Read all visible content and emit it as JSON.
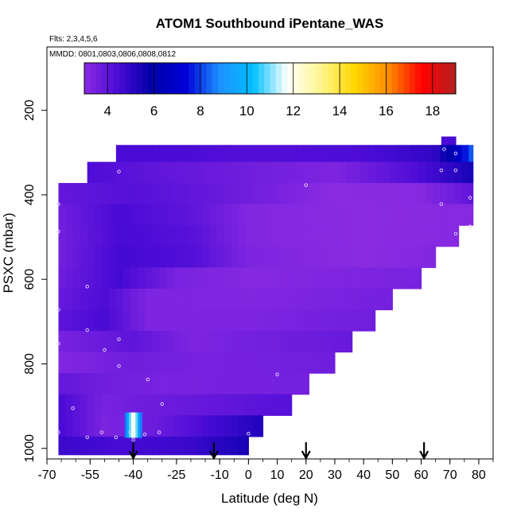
{
  "chart_data": {
    "type": "heatmap",
    "title": "ATOM1 Southbound iPentane_WAS",
    "flights_note": "Flts: 2,3,4,5,6",
    "dates_note": "MMDD: 0801,0803,0806,0808,0812",
    "xlabel": "Latitude (deg N)",
    "ylabel": "PSXC (mbar)",
    "xlim": [
      -70,
      85
    ],
    "ylim": [
      1025,
      50
    ],
    "x_ticks": [
      -70,
      -55,
      -40,
      -25,
      -10,
      0,
      10,
      20,
      30,
      40,
      50,
      60,
      70,
      80
    ],
    "x_tick_labels": [
      "-70",
      "-55",
      "-40",
      "-25",
      "-10",
      "0",
      "10",
      "20",
      "30",
      "40",
      "50",
      "60",
      "70",
      "80"
    ],
    "y_ticks": [
      200,
      400,
      600,
      800,
      1000
    ],
    "y_tick_labels": [
      "200",
      "400",
      "600",
      "800",
      "1000"
    ],
    "colorbar": {
      "min": 3,
      "max": 19,
      "ticks": [
        4,
        6,
        8,
        10,
        12,
        14,
        16,
        18
      ],
      "tick_labels": [
        "4",
        "6",
        "8",
        "10",
        "12",
        "14",
        "16",
        "18"
      ],
      "colors": [
        "#8a2be2",
        "#4b0bd6",
        "#0000a8",
        "#0000d8",
        "#1e90ff",
        "#00bfff",
        "#ffffff",
        "#fff68f",
        "#ffd700",
        "#ff8c00",
        "#ff0000",
        "#b22222"
      ]
    },
    "pressure_bands": [
      {
        "p_top": 262,
        "p_bot": 282,
        "x_start": 67,
        "x_end": 72,
        "lat": [
          -40,
          68
        ],
        "val": [
          4.5,
          4.5
        ]
      },
      {
        "p_top": 282,
        "p_bot": 322,
        "x_start": -46,
        "x_end": 78,
        "lat": [
          -40,
          0,
          40,
          65,
          72,
          78
        ],
        "val": [
          4.5,
          4.3,
          4.4,
          5.0,
          6.5,
          8.5
        ]
      },
      {
        "p_top": 322,
        "p_bot": 372,
        "x_start": -56,
        "x_end": 78,
        "lat": [
          -56,
          -35,
          0,
          30,
          55,
          70,
          78
        ],
        "val": [
          4.4,
          4.0,
          3.6,
          3.3,
          4.2,
          5.0,
          5.5
        ]
      },
      {
        "p_top": 372,
        "p_bot": 422,
        "x_start": -66,
        "x_end": 78,
        "lat": [
          -66,
          -40,
          -10,
          30,
          60,
          78
        ],
        "val": [
          3.9,
          4.2,
          3.8,
          3.0,
          3.1,
          4.0
        ]
      },
      {
        "p_top": 422,
        "p_bot": 472,
        "x_start": -66,
        "x_end": 78,
        "lat": [
          -66,
          -45,
          -20,
          0,
          40,
          78
        ],
        "val": [
          3.6,
          4.5,
          4.0,
          3.2,
          3.0,
          3.1
        ]
      },
      {
        "p_top": 472,
        "p_bot": 522,
        "x_start": -66,
        "x_end": 73,
        "lat": [
          -66,
          -45,
          -20,
          0,
          40,
          73
        ],
        "val": [
          3.5,
          4.5,
          4.2,
          3.2,
          3.0,
          3.1
        ]
      },
      {
        "p_top": 522,
        "p_bot": 572,
        "x_start": -66,
        "x_end": 65,
        "lat": [
          -66,
          -45,
          -20,
          0,
          40,
          65
        ],
        "val": [
          3.5,
          4.6,
          4.3,
          3.3,
          3.0,
          3.2
        ]
      },
      {
        "p_top": 572,
        "p_bot": 622,
        "x_start": -66,
        "x_end": 60,
        "lat": [
          -66,
          -45,
          -25,
          0,
          60
        ],
        "val": [
          3.6,
          4.6,
          3.4,
          3.1,
          3.4
        ]
      },
      {
        "p_top": 622,
        "p_bot": 672,
        "x_start": -66,
        "x_end": 50,
        "lat": [
          -66,
          -50,
          -35,
          0,
          50
        ],
        "val": [
          3.8,
          4.4,
          3.3,
          3.2,
          3.5
        ]
      },
      {
        "p_top": 672,
        "p_bot": 722,
        "x_start": -66,
        "x_end": 44,
        "lat": [
          -66,
          -50,
          -35,
          0,
          44
        ],
        "val": [
          4.0,
          4.5,
          3.3,
          3.3,
          3.6
        ]
      },
      {
        "p_top": 722,
        "p_bot": 772,
        "x_start": -66,
        "x_end": 36,
        "lat": [
          -66,
          -40,
          -20,
          0,
          36
        ],
        "val": [
          3.4,
          4.0,
          3.3,
          3.5,
          3.8
        ]
      },
      {
        "p_top": 772,
        "p_bot": 822,
        "x_start": -66,
        "x_end": 30,
        "lat": [
          -66,
          -40,
          -15,
          30
        ],
        "val": [
          3.2,
          3.6,
          3.4,
          3.6
        ]
      },
      {
        "p_top": 822,
        "p_bot": 872,
        "x_start": -66,
        "x_end": 21,
        "lat": [
          -66,
          -50,
          -30,
          21
        ],
        "val": [
          3.9,
          3.6,
          3.4,
          3.5
        ]
      },
      {
        "p_top": 872,
        "p_bot": 922,
        "x_start": -66,
        "x_end": 15,
        "lat": [
          -66,
          -50,
          -40,
          -20,
          15
        ],
        "val": [
          4.5,
          3.4,
          3.6,
          3.8,
          4.2
        ]
      },
      {
        "p_top": 922,
        "p_bot": 972,
        "x_start": -66,
        "x_end": 5,
        "lat": [
          -66,
          -50,
          -30,
          -15,
          5
        ],
        "val": [
          4.6,
          3.3,
          3.8,
          4.5,
          5.3
        ]
      },
      {
        "p_top": 972,
        "p_bot": 1015,
        "x_start": -66,
        "x_end": 0,
        "lat": [
          -66,
          -45,
          -20,
          0
        ],
        "val": [
          4.8,
          4.5,
          4.8,
          5.5
        ]
      }
    ],
    "hotspot": {
      "lat_start": -43,
      "lat_end": -37,
      "p_top": 915,
      "p_bot": 975,
      "peak_value": 12.5,
      "edge_value": 8.0
    },
    "sample_points": [
      [
        -45,
        345
      ],
      [
        -66,
        422
      ],
      [
        -66,
        487
      ],
      [
        -56,
        617
      ],
      [
        -66,
        672
      ],
      [
        -56,
        720
      ],
      [
        -66,
        752
      ],
      [
        -61,
        905
      ],
      [
        -66,
        962
      ],
      [
        -56,
        974
      ],
      [
        -51,
        962
      ],
      [
        -46,
        974
      ],
      [
        -41,
        962
      ],
      [
        -36,
        967
      ],
      [
        -31,
        962
      ],
      [
        -50,
        767
      ],
      [
        -45,
        742
      ],
      [
        -45,
        805
      ],
      [
        -35,
        837
      ],
      [
        -30,
        895
      ],
      [
        -40,
        980
      ],
      [
        0,
        965
      ],
      [
        10,
        825
      ],
      [
        20,
        377
      ],
      [
        68,
        292
      ],
      [
        72,
        302
      ],
      [
        67,
        342
      ],
      [
        72,
        342
      ],
      [
        77,
        407
      ],
      [
        67,
        422
      ],
      [
        77,
        475
      ],
      [
        72,
        492
      ]
    ],
    "flight_markers": [
      {
        "lat": -40
      },
      {
        "lat": -12
      },
      {
        "lat": 20
      },
      {
        "lat": 61
      }
    ]
  }
}
